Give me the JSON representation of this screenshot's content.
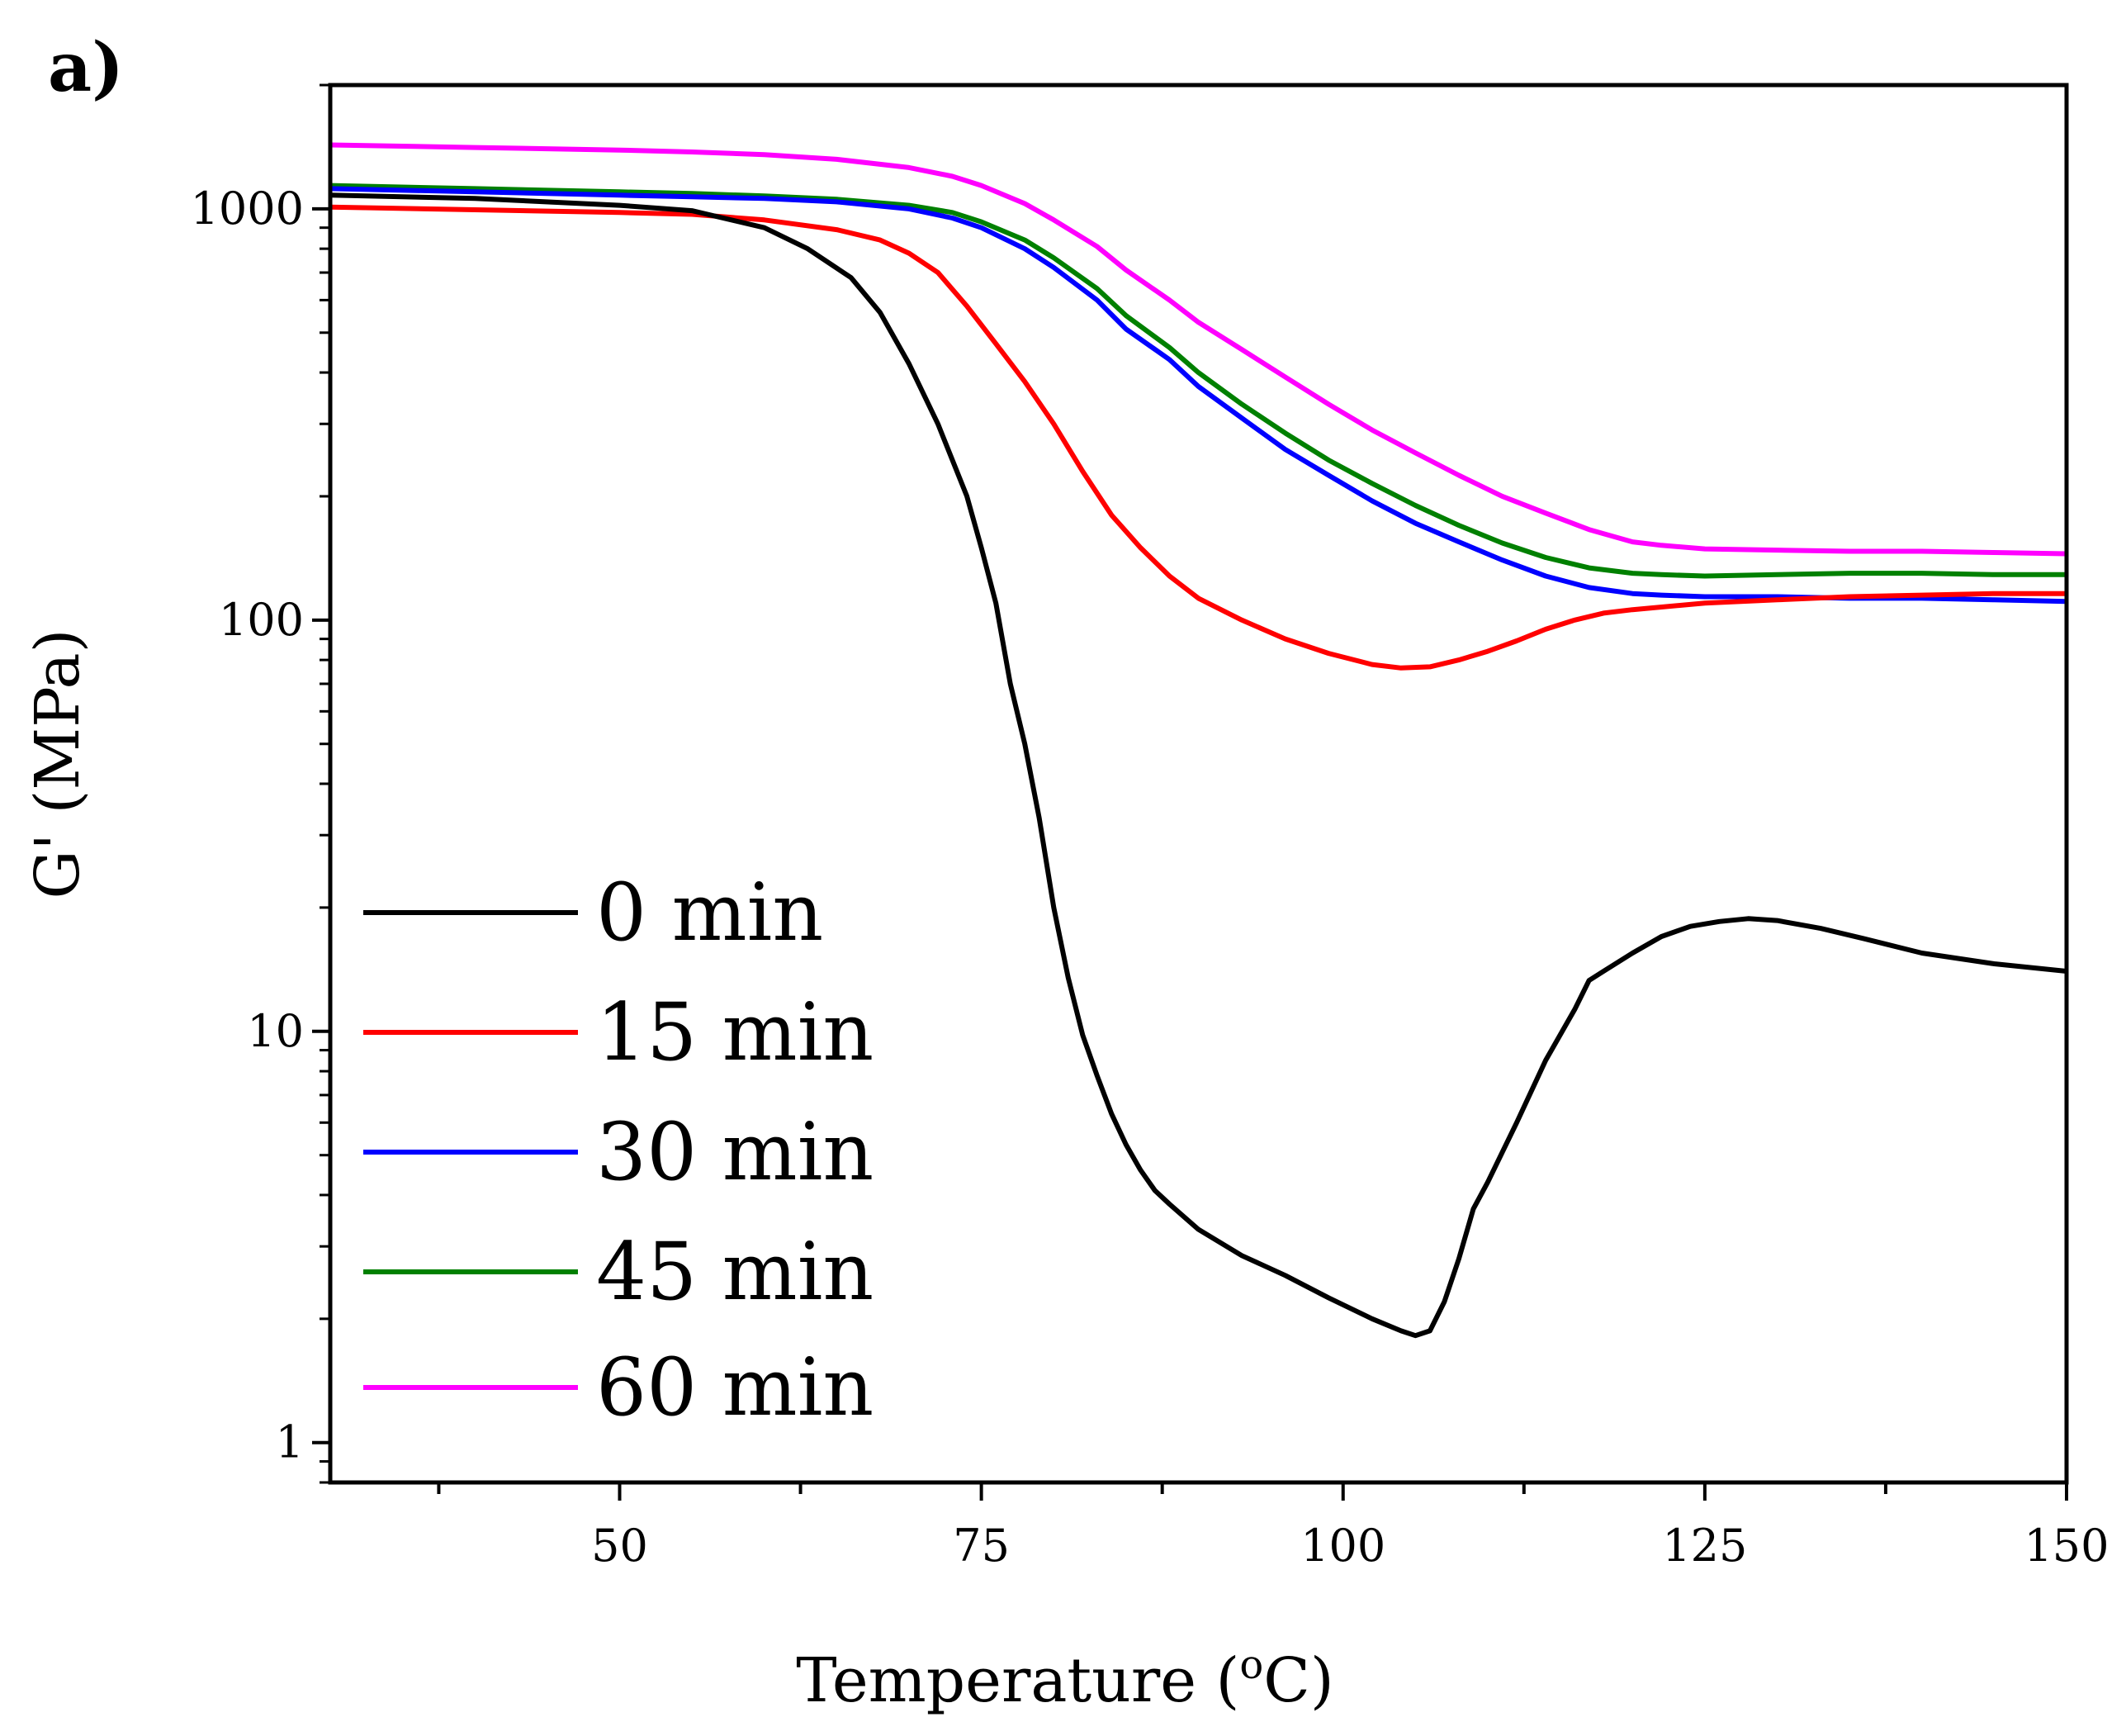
{
  "chart_data": {
    "type": "line",
    "panel_label": "a)",
    "xlabel": "Temperature (",
    "xlabel_sup": "o",
    "xlabel_end": "C)",
    "ylabel": "G' (MPa)",
    "xlim": [
      30,
      150
    ],
    "ylim": [
      0.8,
      2000
    ],
    "yscale": "log",
    "x_ticks": [
      50,
      75,
      100,
      125,
      150
    ],
    "x_tick_labels": [
      "50",
      "75",
      "100",
      "125",
      "150"
    ],
    "y_ticks": [
      1,
      10,
      100,
      1000
    ],
    "y_tick_labels": [
      "1",
      "10",
      "100",
      "1000"
    ],
    "legend_position": "lower-left",
    "series": [
      {
        "name": "0 min",
        "color": "#000000",
        "x": [
          30,
          40,
          50,
          55,
          60,
          63,
          66,
          68,
          70,
          72,
          74,
          75,
          76,
          77,
          78,
          79,
          80,
          81,
          82,
          83,
          84,
          85,
          86,
          87,
          88,
          90,
          93,
          96,
          99,
          102,
          104,
          105,
          106,
          107,
          108,
          109,
          110,
          112,
          114,
          116,
          117,
          118,
          120,
          122,
          124,
          126,
          128,
          130,
          133,
          136,
          140,
          145,
          150
        ],
        "y": [
          1080,
          1060,
          1020,
          990,
          900,
          800,
          680,
          560,
          420,
          300,
          200,
          150,
          110,
          70,
          50,
          33,
          20,
          13.5,
          9.8,
          7.8,
          6.3,
          5.3,
          4.6,
          4.1,
          3.8,
          3.3,
          2.85,
          2.55,
          2.25,
          2.0,
          1.87,
          1.82,
          1.87,
          2.2,
          2.8,
          3.7,
          4.3,
          6.0,
          8.5,
          11.3,
          13.3,
          14.0,
          15.5,
          17.0,
          18.0,
          18.5,
          18.8,
          18.6,
          17.8,
          16.8,
          15.5,
          14.6,
          14.0
        ]
      },
      {
        "name": "15 min",
        "color": "#ff0000",
        "x": [
          30,
          40,
          50,
          55,
          60,
          65,
          68,
          70,
          72,
          74,
          76,
          78,
          80,
          82,
          84,
          86,
          88,
          90,
          93,
          96,
          99,
          102,
          104,
          106,
          108,
          110,
          112,
          114,
          116,
          118,
          120,
          125,
          130,
          135,
          140,
          145,
          150
        ],
        "y": [
          1010,
          995,
          980,
          970,
          940,
          890,
          840,
          780,
          700,
          580,
          470,
          380,
          300,
          230,
          180,
          150,
          128,
          113,
          100,
          90,
          83,
          78,
          76.5,
          77,
          80,
          84,
          89,
          95,
          100,
          104,
          106,
          110,
          112,
          114,
          115,
          116,
          116
        ]
      },
      {
        "name": "30 min",
        "color": "#0000ff",
        "x": [
          30,
          40,
          50,
          55,
          60,
          65,
          70,
          73,
          75,
          78,
          80,
          83,
          85,
          88,
          90,
          93,
          96,
          99,
          102,
          105,
          108,
          111,
          114,
          117,
          120,
          122,
          125,
          130,
          135,
          140,
          145,
          150
        ],
        "y": [
          1120,
          1100,
          1080,
          1070,
          1060,
          1040,
          1000,
          950,
          900,
          800,
          720,
          600,
          510,
          430,
          370,
          310,
          260,
          225,
          195,
          172,
          155,
          140,
          128,
          120,
          116,
          115,
          114,
          114,
          113,
          113,
          112,
          111
        ]
      },
      {
        "name": "45 min",
        "color": "#008000",
        "x": [
          30,
          40,
          50,
          55,
          60,
          65,
          70,
          73,
          75,
          78,
          80,
          83,
          85,
          88,
          90,
          93,
          96,
          99,
          102,
          105,
          108,
          111,
          114,
          117,
          120,
          122,
          125,
          130,
          135,
          140,
          145,
          150
        ],
        "y": [
          1140,
          1120,
          1100,
          1090,
          1075,
          1055,
          1020,
          980,
          930,
          840,
          760,
          640,
          550,
          460,
          400,
          335,
          285,
          245,
          215,
          190,
          170,
          154,
          142,
          134,
          130,
          129,
          128,
          129,
          130,
          130,
          129,
          129
        ]
      },
      {
        "name": "60 min",
        "color": "#ff00ff",
        "x": [
          30,
          40,
          50,
          55,
          60,
          65,
          70,
          73,
          75,
          78,
          80,
          83,
          85,
          88,
          90,
          93,
          96,
          99,
          102,
          105,
          108,
          111,
          114,
          117,
          120,
          122,
          125,
          130,
          135,
          140,
          145,
          150
        ],
        "y": [
          1430,
          1410,
          1390,
          1375,
          1355,
          1320,
          1260,
          1200,
          1140,
          1030,
          940,
          810,
          710,
          600,
          530,
          455,
          390,
          335,
          290,
          255,
          225,
          200,
          182,
          166,
          155,
          152,
          149,
          148,
          147,
          147,
          146,
          145
        ]
      }
    ]
  }
}
